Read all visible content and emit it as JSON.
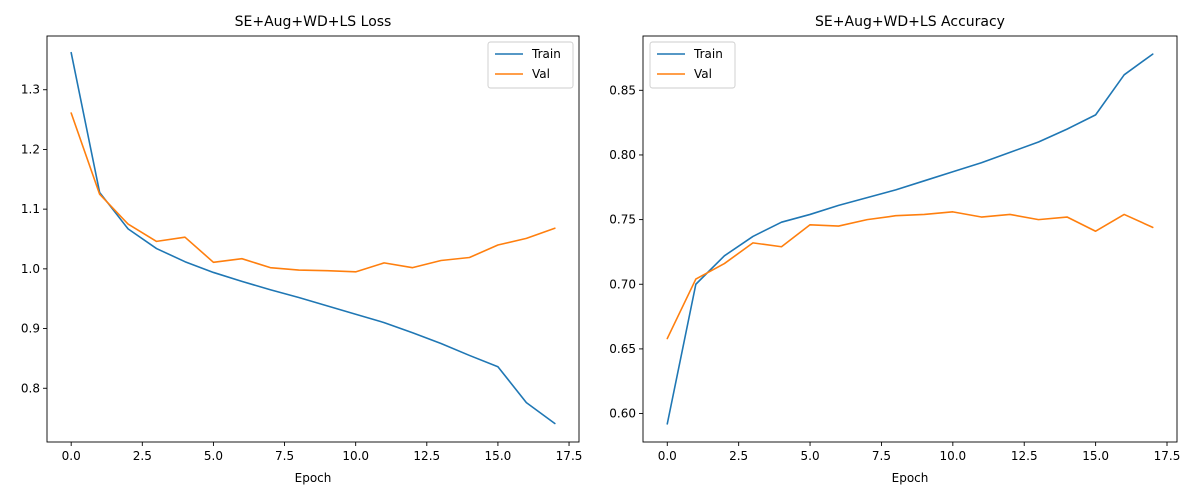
{
  "chart_data": [
    {
      "type": "line",
      "title": "SE+Aug+WD+LS Loss",
      "xlabel": "Epoch",
      "ylabel": "",
      "xlim": [
        -0.85,
        17.85
      ],
      "ylim": [
        0.71,
        1.39
      ],
      "xticks": [
        0.0,
        2.5,
        5.0,
        7.5,
        10.0,
        12.5,
        15.0,
        17.5
      ],
      "xtick_labels": [
        "0.0",
        "2.5",
        "5.0",
        "7.5",
        "10.0",
        "12.5",
        "15.0",
        "17.5"
      ],
      "yticks": [
        0.8,
        0.9,
        1.0,
        1.1,
        1.2,
        1.3
      ],
      "ytick_labels": [
        "0.8",
        "0.9",
        "1.0",
        "1.1",
        "1.2",
        "1.3"
      ],
      "grid": false,
      "legend": "top-right",
      "x": [
        0,
        1,
        2,
        3,
        4,
        5,
        6,
        7,
        8,
        9,
        10,
        11,
        12,
        13,
        14,
        15,
        16,
        17
      ],
      "series": [
        {
          "name": "Train",
          "color": "#1f77b4",
          "values": [
            1.362,
            1.128,
            1.067,
            1.034,
            1.012,
            0.994,
            0.979,
            0.965,
            0.952,
            0.938,
            0.924,
            0.91,
            0.893,
            0.875,
            0.855,
            0.836,
            0.776,
            0.741
          ]
        },
        {
          "name": "Val",
          "color": "#ff7f0e",
          "values": [
            1.261,
            1.125,
            1.075,
            1.046,
            1.053,
            1.011,
            1.017,
            1.002,
            0.998,
            0.997,
            0.995,
            1.01,
            1.002,
            1.014,
            1.019,
            1.04,
            1.051,
            1.068
          ]
        }
      ]
    },
    {
      "type": "line",
      "title": "SE+Aug+WD+LS Accuracy",
      "xlabel": "Epoch",
      "ylabel": "",
      "xlim": [
        -0.85,
        17.85
      ],
      "ylim": [
        0.578,
        0.892
      ],
      "xticks": [
        0.0,
        2.5,
        5.0,
        7.5,
        10.0,
        12.5,
        15.0,
        17.5
      ],
      "xtick_labels": [
        "0.0",
        "2.5",
        "5.0",
        "7.5",
        "10.0",
        "12.5",
        "15.0",
        "17.5"
      ],
      "yticks": [
        0.6,
        0.65,
        0.7,
        0.75,
        0.8,
        0.85
      ],
      "ytick_labels": [
        "0.60",
        "0.65",
        "0.70",
        "0.75",
        "0.80",
        "0.85"
      ],
      "grid": false,
      "legend": "top-left",
      "x": [
        0,
        1,
        2,
        3,
        4,
        5,
        6,
        7,
        8,
        9,
        10,
        11,
        12,
        13,
        14,
        15,
        16,
        17
      ],
      "series": [
        {
          "name": "Train",
          "color": "#1f77b4",
          "values": [
            0.592,
            0.7,
            0.722,
            0.737,
            0.748,
            0.754,
            0.761,
            0.767,
            0.773,
            0.78,
            0.787,
            0.794,
            0.802,
            0.81,
            0.82,
            0.831,
            0.862,
            0.878
          ]
        },
        {
          "name": "Val",
          "color": "#ff7f0e",
          "values": [
            0.658,
            0.704,
            0.716,
            0.732,
            0.729,
            0.746,
            0.745,
            0.75,
            0.753,
            0.754,
            0.756,
            0.752,
            0.754,
            0.75,
            0.752,
            0.741,
            0.754,
            0.744
          ]
        }
      ]
    }
  ]
}
